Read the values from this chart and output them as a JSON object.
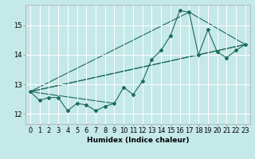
{
  "title": "",
  "xlabel": "Humidex (Indice chaleur)",
  "bg_color": "#c5e8e8",
  "grid_color": "#ffffff",
  "line_color": "#1a6b5a",
  "xlim": [
    -0.5,
    23.5
  ],
  "ylim": [
    11.65,
    15.7
  ],
  "xticks": [
    0,
    1,
    2,
    3,
    4,
    5,
    6,
    7,
    8,
    9,
    10,
    11,
    12,
    13,
    14,
    15,
    16,
    17,
    18,
    19,
    20,
    21,
    22,
    23
  ],
  "yticks": [
    12,
    13,
    14,
    15
  ],
  "zigzag": [
    [
      0,
      12.75
    ],
    [
      1,
      12.45
    ],
    [
      2,
      12.55
    ],
    [
      3,
      12.55
    ],
    [
      4,
      12.1
    ],
    [
      5,
      12.35
    ],
    [
      6,
      12.3
    ],
    [
      7,
      12.1
    ],
    [
      8,
      12.25
    ],
    [
      9,
      12.35
    ],
    [
      10,
      12.9
    ],
    [
      11,
      12.65
    ],
    [
      12,
      13.1
    ],
    [
      13,
      13.85
    ],
    [
      14,
      14.15
    ],
    [
      15,
      14.65
    ],
    [
      16,
      15.5
    ],
    [
      17,
      15.45
    ],
    [
      18,
      14.0
    ],
    [
      19,
      14.85
    ],
    [
      20,
      14.1
    ],
    [
      21,
      13.9
    ],
    [
      22,
      14.15
    ],
    [
      23,
      14.35
    ]
  ],
  "fan_lines": [
    {
      "x": [
        0,
        9
      ],
      "y": [
        12.75,
        12.35
      ]
    },
    {
      "x": [
        0,
        23
      ],
      "y": [
        12.75,
        14.35
      ]
    },
    {
      "x": [
        0,
        17,
        23
      ],
      "y": [
        12.75,
        15.45,
        14.35
      ]
    },
    {
      "x": [
        0,
        23
      ],
      "y": [
        12.75,
        14.35
      ]
    }
  ],
  "xlabel_fontsize": 6.5,
  "tick_fontsize": 6,
  "marker_size": 2.0,
  "line_width": 0.8
}
